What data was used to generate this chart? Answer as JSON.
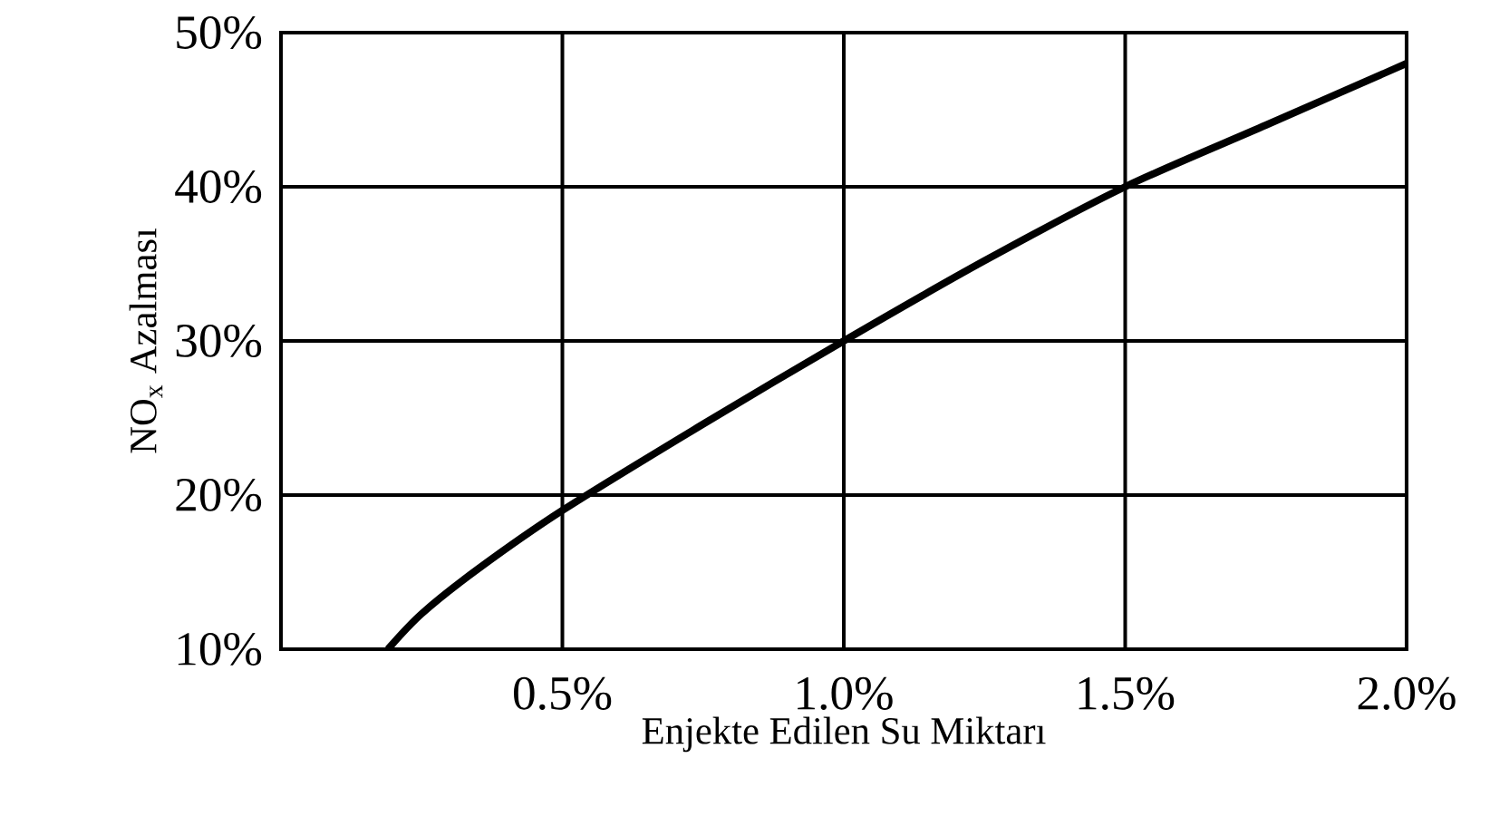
{
  "chart_data": {
    "type": "line",
    "xlabel": "Enjekte Edilen Su Miktarı",
    "ylabel": "NO$_{x}$ Azalması",
    "x": [
      0.19,
      0.25,
      0.35,
      0.5,
      0.75,
      1.0,
      1.25,
      1.5,
      1.75,
      2.0
    ],
    "series": [
      {
        "color": "#000000",
        "values": [
          10,
          12.3,
          15.2,
          19,
          24.6,
          30,
          35.2,
          40,
          44,
          48
        ]
      }
    ],
    "xlim": [
      0,
      2.0
    ],
    "ylim": [
      10,
      50
    ],
    "xticks": [
      {
        "value": 0.5,
        "label": "0.5%"
      },
      {
        "value": 1.0,
        "label": "1.0%"
      },
      {
        "value": 1.5,
        "label": "1.5%"
      },
      {
        "value": 2.0,
        "label": "2.0%"
      }
    ],
    "yticks": [
      {
        "value": 10,
        "label": "10%"
      },
      {
        "value": 20,
        "label": "20%"
      },
      {
        "value": 30,
        "label": "30%"
      },
      {
        "value": 40,
        "label": "40%"
      },
      {
        "value": 50,
        "label": "50%"
      }
    ],
    "grid": true,
    "line_style": "solid"
  }
}
